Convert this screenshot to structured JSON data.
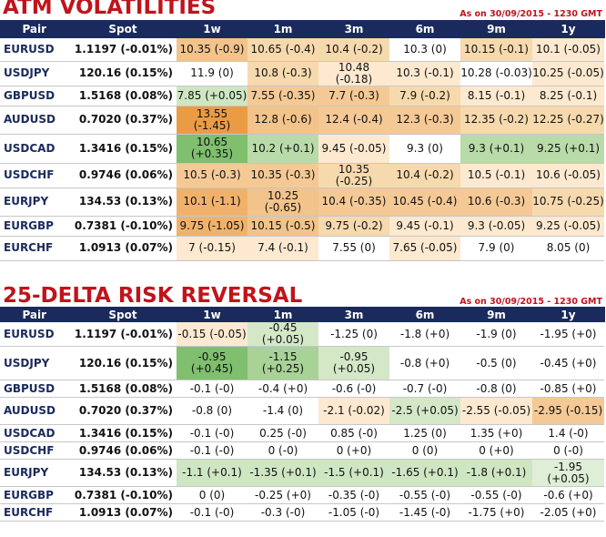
{
  "sections": [
    {
      "title": "ATM VOLATILITIES",
      "as_of": "As on 30/09/2015 - 1230 GMT",
      "headers": [
        "Pair",
        "Spot",
        "1w",
        "1m",
        "3m",
        "6m",
        "9m",
        "1y"
      ],
      "rows": [
        {
          "pair": "EURUSD",
          "spot": "1.1197 (-0.01%)",
          "cells": [
            "10.35 (-0.9)",
            "10.65 (-0.4)",
            "10.4 (-0.2)",
            "10.3 (0)",
            "10.15 (-0.1)",
            "10.1 (-0.05)"
          ],
          "colors": [
            "#f2c38a",
            "#f7d9ae",
            "#f7d9ae",
            "#ffffff",
            "#f7d9ae",
            "#fde9d0"
          ]
        },
        {
          "pair": "USDJPY",
          "spot": "120.16 (0.15%)",
          "cells": [
            "11.9 (0)",
            "10.8 (-0.3)",
            "10.48 (-0.18)",
            "10.3 (-0.1)",
            "10.28 (-0.03)",
            "10.25 (-0.05)"
          ],
          "colors": [
            "#ffffff",
            "#f7d9ae",
            "#fde9d0",
            "#fde9d0",
            "#ffffff",
            "#fde9d0"
          ]
        },
        {
          "pair": "GBPUSD",
          "spot": "1.5168 (0.08%)",
          "cells": [
            "7.85 (+0.05)",
            "7.55 (-0.35)",
            "7.7 (-0.3)",
            "7.9 (-0.2)",
            "8.15 (-0.1)",
            "8.25 (-0.1)"
          ],
          "colors": [
            "#cfe6c3",
            "#f4c996",
            "#f4c996",
            "#f7d9ae",
            "#fde9d0",
            "#fde9d0"
          ]
        },
        {
          "pair": "AUDUSD",
          "spot": "0.7020 (0.37%)",
          "cells": [
            "13.55 (-1.45)",
            "12.8 (-0.6)",
            "12.4 (-0.4)",
            "12.3 (-0.3)",
            "12.35 (-0.2)",
            "12.25 (-0.27)"
          ],
          "colors": [
            "#ea9c45",
            "#f2c38a",
            "#f4c996",
            "#f4c996",
            "#f7d9ae",
            "#f7d9ae"
          ]
        },
        {
          "pair": "USDCAD",
          "spot": "1.3416 (0.15%)",
          "cells": [
            "10.65 (+0.35)",
            "10.2 (+0.1)",
            "9.45 (-0.05)",
            "9.3 (0)",
            "9.3 (+0.1)",
            "9.25 (+0.1)"
          ],
          "colors": [
            "#7fbf6e",
            "#b9dba9",
            "#fde9d0",
            "#ffffff",
            "#b9dba9",
            "#b9dba9"
          ]
        },
        {
          "pair": "USDCHF",
          "spot": "0.9746 (0.06%)",
          "cells": [
            "10.5 (-0.3)",
            "10.35 (-0.3)",
            "10.35 (-0.25)",
            "10.4 (-0.2)",
            "10.5 (-0.1)",
            "10.6 (-0.05)"
          ],
          "colors": [
            "#f4c996",
            "#f4c996",
            "#f7d9ae",
            "#f7d9ae",
            "#fde9d0",
            "#fde9d0"
          ]
        },
        {
          "pair": "EURJPY",
          "spot": "134.53 (0.13%)",
          "cells": [
            "10.1 (-1.1)",
            "10.25 (-0.65)",
            "10.4 (-0.35)",
            "10.45 (-0.4)",
            "10.6 (-0.3)",
            "10.75 (-0.25)"
          ],
          "colors": [
            "#f0b26a",
            "#f2c38a",
            "#f4c996",
            "#f4c996",
            "#f4c996",
            "#f7d9ae"
          ]
        },
        {
          "pair": "EURGBP",
          "spot": "0.7381 (-0.10%)",
          "cells": [
            "9.75 (-1.05)",
            "10.15 (-0.5)",
            "9.75 (-0.2)",
            "9.45 (-0.1)",
            "9.3 (-0.05)",
            "9.25 (-0.05)"
          ],
          "colors": [
            "#f0b26a",
            "#f2c38a",
            "#f7d9ae",
            "#fde9d0",
            "#fde9d0",
            "#fde9d0"
          ]
        },
        {
          "pair": "EURCHF",
          "spot": "1.0913 (0.07%)",
          "cells": [
            "7 (-0.15)",
            "7.4 (-0.1)",
            "7.55 (0)",
            "7.65 (-0.05)",
            "7.9 (0)",
            "8.05 (0)"
          ],
          "colors": [
            "#fde9d0",
            "#fde9d0",
            "#ffffff",
            "#fde9d0",
            "#ffffff",
            "#ffffff"
          ]
        }
      ]
    },
    {
      "title": "25-DELTA RISK REVERSAL",
      "as_of": "As on 30/09/2015 - 1230 GMT",
      "headers": [
        "Pair",
        "Spot",
        "1w",
        "1m",
        "3m",
        "6m",
        "9m",
        "1y"
      ],
      "rows": [
        {
          "pair": "EURUSD",
          "spot": "1.1197 (-0.01%)",
          "cells": [
            "-0.15 (-0.05)",
            "-0.45 (+0.05)",
            "-1.25 (0)",
            "-1.8 (+0)",
            "-1.9 (0)",
            "-1.95 (+0)"
          ],
          "colors": [
            "#fde9d0",
            "#d4e8c8",
            "#ffffff",
            "#ffffff",
            "#ffffff",
            "#ffffff"
          ]
        },
        {
          "pair": "USDJPY",
          "spot": "120.16 (0.15%)",
          "cells": [
            "-0.95 (+0.45)",
            "-1.15 (+0.25)",
            "-0.95 (+0.05)",
            "-0.8 (+0)",
            "-0.5 (0)",
            "-0.45 (+0)"
          ],
          "colors": [
            "#7fbf6e",
            "#a8d296",
            "#d4e8c8",
            "#ffffff",
            "#ffffff",
            "#ffffff"
          ]
        },
        {
          "pair": "GBPUSD",
          "spot": "1.5168 (0.08%)",
          "cells": [
            "-0.1 (-0)",
            "-0.4 (+0)",
            "-0.6 (-0)",
            "-0.7 (-0)",
            "-0.8 (0)",
            "-0.85 (+0)"
          ],
          "colors": [
            "#ffffff",
            "#ffffff",
            "#ffffff",
            "#ffffff",
            "#ffffff",
            "#ffffff"
          ]
        },
        {
          "pair": "AUDUSD",
          "spot": "0.7020 (0.37%)",
          "cells": [
            "-0.8 (0)",
            "-1.4 (0)",
            "-2.1 (-0.02)",
            "-2.5 (+0.05)",
            "-2.55 (-0.05)",
            "-2.95 (-0.15)"
          ],
          "colors": [
            "#ffffff",
            "#ffffff",
            "#fde9d0",
            "#d4e8c8",
            "#fde9d0",
            "#f4c996"
          ]
        },
        {
          "pair": "USDCAD",
          "spot": "1.3416 (0.15%)",
          "cells": [
            "-0.1 (-0)",
            "0.25 (-0)",
            "0.85 (-0)",
            "1.25 (0)",
            "1.35 (+0)",
            "1.4 (-0)"
          ],
          "colors": [
            "#ffffff",
            "#ffffff",
            "#ffffff",
            "#ffffff",
            "#ffffff",
            "#ffffff"
          ]
        },
        {
          "pair": "USDCHF",
          "spot": "0.9746 (0.06%)",
          "cells": [
            "-0.1 (-0)",
            "0 (-0)",
            "0 (+0)",
            "0 (0)",
            "0 (+0)",
            "0 (-0)"
          ],
          "colors": [
            "#ffffff",
            "#ffffff",
            "#ffffff",
            "#ffffff",
            "#ffffff",
            "#ffffff"
          ]
        },
        {
          "pair": "EURJPY",
          "spot": "134.53 (0.13%)",
          "cells": [
            "-1.1 (+0.1)",
            "-1.35 (+0.1)",
            "-1.5 (+0.1)",
            "-1.65 (+0.1)",
            "-1.8 (+0.1)",
            "-1.95 (+0.05)"
          ],
          "colors": [
            "#cfe6c3",
            "#cfe6c3",
            "#cfe6c3",
            "#cfe6c3",
            "#cfe6c3",
            "#dfeed6"
          ]
        },
        {
          "pair": "EURGBP",
          "spot": "0.7381 (-0.10%)",
          "cells": [
            "0 (0)",
            "-0.25 (+0)",
            "-0.35 (-0)",
            "-0.55 (-0)",
            "-0.55 (-0)",
            "-0.6 (+0)"
          ],
          "colors": [
            "#ffffff",
            "#ffffff",
            "#ffffff",
            "#ffffff",
            "#ffffff",
            "#ffffff"
          ]
        },
        {
          "pair": "EURCHF",
          "spot": "1.0913 (0.07%)",
          "cells": [
            "-0.1 (-0)",
            "-0.3 (-0)",
            "-1.05 (-0)",
            "-1.45 (-0)",
            "-1.75 (+0)",
            "-2.05 (+0)"
          ],
          "colors": [
            "#ffffff",
            "#ffffff",
            "#ffffff",
            "#ffffff",
            "#ffffff",
            "#ffffff"
          ]
        }
      ]
    }
  ]
}
